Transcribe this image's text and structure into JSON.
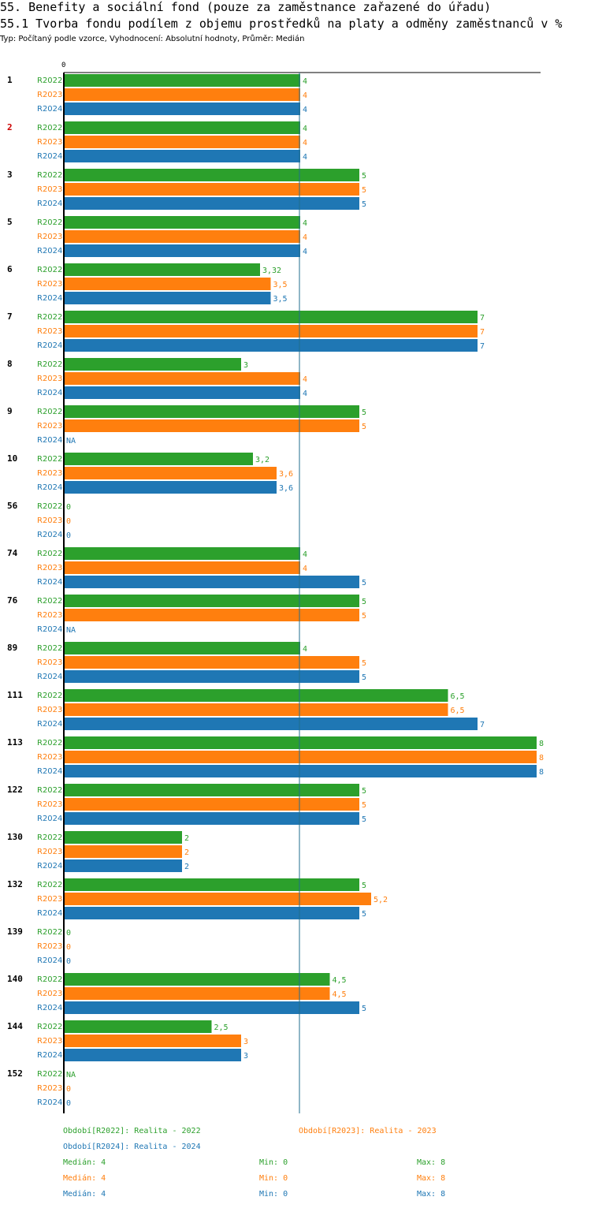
{
  "header": {
    "title": "55. Benefity a sociální fond (pouze za zaměstnance zařazené do úřadu)",
    "subtitle": "55.1 Tvorba fondu podílem z objemu prostředků na platy a odměny zaměstnanců v %",
    "type_line": "Typ: Počítaný podle vzorce, Vyhodnocení: Absolutní hodnoty, Průměr: Medián"
  },
  "colors": {
    "R2022": "#2ca02c",
    "R2023": "#ff7f0e",
    "R2024": "#1f77b4",
    "highlight": "#cc0000"
  },
  "chart_data": {
    "type": "bar",
    "orientation": "horizontal",
    "axis_label_zero": "0",
    "xlim": [
      0,
      8
    ],
    "median_line": 4,
    "series_names": [
      "R2022",
      "R2023",
      "R2024"
    ],
    "highlight_group": "2",
    "groups": [
      {
        "label": "1",
        "values": [
          4,
          4,
          4
        ],
        "labels": [
          "4",
          "4",
          "4"
        ]
      },
      {
        "label": "2",
        "values": [
          4,
          4,
          4
        ],
        "labels": [
          "4",
          "4",
          "4"
        ]
      },
      {
        "label": "3",
        "values": [
          5,
          5,
          5
        ],
        "labels": [
          "5",
          "5",
          "5"
        ]
      },
      {
        "label": "5",
        "values": [
          4,
          4,
          4
        ],
        "labels": [
          "4",
          "4",
          "4"
        ]
      },
      {
        "label": "6",
        "values": [
          3.32,
          3.5,
          3.5
        ],
        "labels": [
          "3,32",
          "3,5",
          "3,5"
        ]
      },
      {
        "label": "7",
        "values": [
          7,
          7,
          7
        ],
        "labels": [
          "7",
          "7",
          "7"
        ]
      },
      {
        "label": "8",
        "values": [
          3,
          4,
          4
        ],
        "labels": [
          "3",
          "4",
          "4"
        ]
      },
      {
        "label": "9",
        "values": [
          5,
          5,
          null
        ],
        "labels": [
          "5",
          "5",
          "NA"
        ]
      },
      {
        "label": "10",
        "values": [
          3.2,
          3.6,
          3.6
        ],
        "labels": [
          "3,2",
          "3,6",
          "3,6"
        ]
      },
      {
        "label": "56",
        "values": [
          0,
          0,
          0
        ],
        "labels": [
          "0",
          "0",
          "0"
        ]
      },
      {
        "label": "74",
        "values": [
          4,
          4,
          5
        ],
        "labels": [
          "4",
          "4",
          "5"
        ]
      },
      {
        "label": "76",
        "values": [
          5,
          5,
          null
        ],
        "labels": [
          "5",
          "5",
          "NA"
        ]
      },
      {
        "label": "89",
        "values": [
          4,
          5,
          5
        ],
        "labels": [
          "4",
          "5",
          "5"
        ]
      },
      {
        "label": "111",
        "values": [
          6.5,
          6.5,
          7
        ],
        "labels": [
          "6,5",
          "6,5",
          "7"
        ]
      },
      {
        "label": "113",
        "values": [
          8,
          8,
          8
        ],
        "labels": [
          "8",
          "8",
          "8"
        ]
      },
      {
        "label": "122",
        "values": [
          5,
          5,
          5
        ],
        "labels": [
          "5",
          "5",
          "5"
        ]
      },
      {
        "label": "130",
        "values": [
          2,
          2,
          2
        ],
        "labels": [
          "2",
          "2",
          "2"
        ]
      },
      {
        "label": "132",
        "values": [
          5,
          5.2,
          5
        ],
        "labels": [
          "5",
          "5,2",
          "5"
        ]
      },
      {
        "label": "139",
        "values": [
          0,
          0,
          0
        ],
        "labels": [
          "0",
          "0",
          "0"
        ]
      },
      {
        "label": "140",
        "values": [
          4.5,
          4.5,
          5
        ],
        "labels": [
          "4,5",
          "4,5",
          "5"
        ]
      },
      {
        "label": "144",
        "values": [
          2.5,
          3,
          3
        ],
        "labels": [
          "2,5",
          "3",
          "3"
        ]
      },
      {
        "label": "152",
        "values": [
          null,
          0,
          0
        ],
        "labels": [
          "NA",
          "0",
          "0"
        ]
      }
    ]
  },
  "legend": {
    "period_r2022": "Období[R2022]: Realita - 2022",
    "period_r2023": "Období[R2023]: Realita - 2023",
    "period_r2024": "Období[R2024]: Realita - 2024",
    "stats": [
      {
        "median": "Medián: 4",
        "min": "Min: 0",
        "max": "Max: 8"
      },
      {
        "median": "Medián: 4",
        "min": "Min: 0",
        "max": "Max: 8"
      },
      {
        "median": "Medián: 4",
        "min": "Min: 0",
        "max": "Max: 8"
      }
    ]
  }
}
